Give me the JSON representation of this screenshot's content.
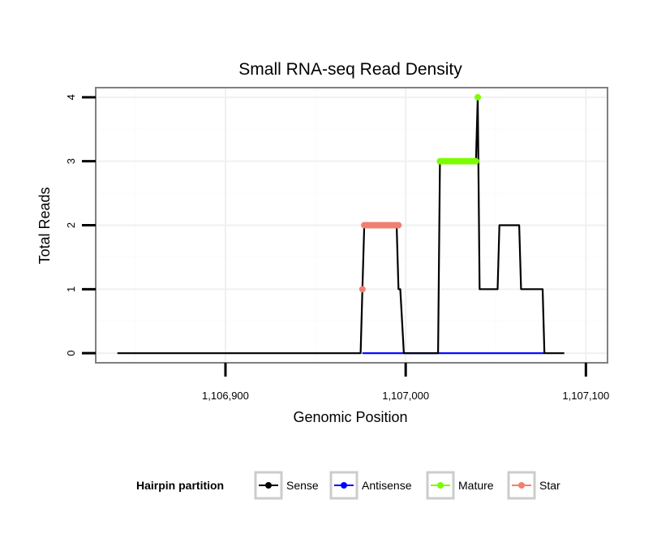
{
  "chart_data": {
    "type": "line",
    "title": "Small RNA-seq Read Density",
    "xlabel": "Genomic Position",
    "ylabel": "Total Reads",
    "xlim": [
      1106828,
      1107112
    ],
    "ylim": [
      -0.15,
      4.15
    ],
    "x_ticks": [
      {
        "value": 1106900,
        "label": "1,106,900"
      },
      {
        "value": 1107000,
        "label": "1,107,000"
      },
      {
        "value": 1107100,
        "label": "1,107,100"
      }
    ],
    "y_ticks": [
      {
        "value": 0,
        "label": "0"
      },
      {
        "value": 1,
        "label": "1"
      },
      {
        "value": 2,
        "label": "2"
      },
      {
        "value": 3,
        "label": "3"
      },
      {
        "value": 4,
        "label": "4"
      }
    ],
    "grid": true,
    "legend_position": "bottom",
    "legend_title": "Hairpin partition",
    "series": [
      {
        "name": "Sense",
        "color": "#000000",
        "kind": "line",
        "points": [
          [
            1106840,
            0
          ],
          [
            1106975,
            0
          ],
          [
            1106976,
            1
          ],
          [
            1106977,
            2
          ],
          [
            1106995,
            2
          ],
          [
            1106996,
            1
          ],
          [
            1106997,
            1
          ],
          [
            1106999,
            0
          ],
          [
            1107018,
            0
          ],
          [
            1107019,
            3
          ],
          [
            1107039,
            3
          ],
          [
            1107040,
            4
          ],
          [
            1107041,
            1
          ],
          [
            1107051,
            1
          ],
          [
            1107052,
            2
          ],
          [
            1107063,
            2
          ],
          [
            1107064,
            1
          ],
          [
            1107076,
            1
          ],
          [
            1107077,
            0
          ],
          [
            1107088,
            0
          ]
        ]
      },
      {
        "name": "Antisense",
        "color": "#0000ff",
        "kind": "line",
        "points": [
          [
            1106976,
            0
          ],
          [
            1107077,
            0
          ]
        ]
      },
      {
        "name": "Mature",
        "color": "#7cfc00",
        "kind": "points",
        "points": [
          [
            1107019,
            3
          ],
          [
            1107020,
            3
          ],
          [
            1107021,
            3
          ],
          [
            1107022,
            3
          ],
          [
            1107023,
            3
          ],
          [
            1107024,
            3
          ],
          [
            1107025,
            3
          ],
          [
            1107026,
            3
          ],
          [
            1107027,
            3
          ],
          [
            1107028,
            3
          ],
          [
            1107029,
            3
          ],
          [
            1107030,
            3
          ],
          [
            1107031,
            3
          ],
          [
            1107032,
            3
          ],
          [
            1107033,
            3
          ],
          [
            1107034,
            3
          ],
          [
            1107035,
            3
          ],
          [
            1107036,
            3
          ],
          [
            1107037,
            3
          ],
          [
            1107038,
            3
          ],
          [
            1107039,
            3
          ],
          [
            1107040,
            4
          ]
        ]
      },
      {
        "name": "Star",
        "color": "#f08070",
        "kind": "points",
        "points": [
          [
            1106976,
            1
          ],
          [
            1106977,
            2
          ],
          [
            1106978,
            2
          ],
          [
            1106979,
            2
          ],
          [
            1106980,
            2
          ],
          [
            1106981,
            2
          ],
          [
            1106982,
            2
          ],
          [
            1106983,
            2
          ],
          [
            1106984,
            2
          ],
          [
            1106985,
            2
          ],
          [
            1106986,
            2
          ],
          [
            1106987,
            2
          ],
          [
            1106988,
            2
          ],
          [
            1106989,
            2
          ],
          [
            1106990,
            2
          ],
          [
            1106991,
            2
          ],
          [
            1106992,
            2
          ],
          [
            1106993,
            2
          ],
          [
            1106994,
            2
          ],
          [
            1106995,
            2
          ],
          [
            1106996,
            2
          ]
        ]
      }
    ]
  },
  "colors": {
    "panel_border": "#808080",
    "grid_major": "#f0f0f0",
    "grid_minor": "#fafafa",
    "legend_key_border": "#cccccc"
  }
}
